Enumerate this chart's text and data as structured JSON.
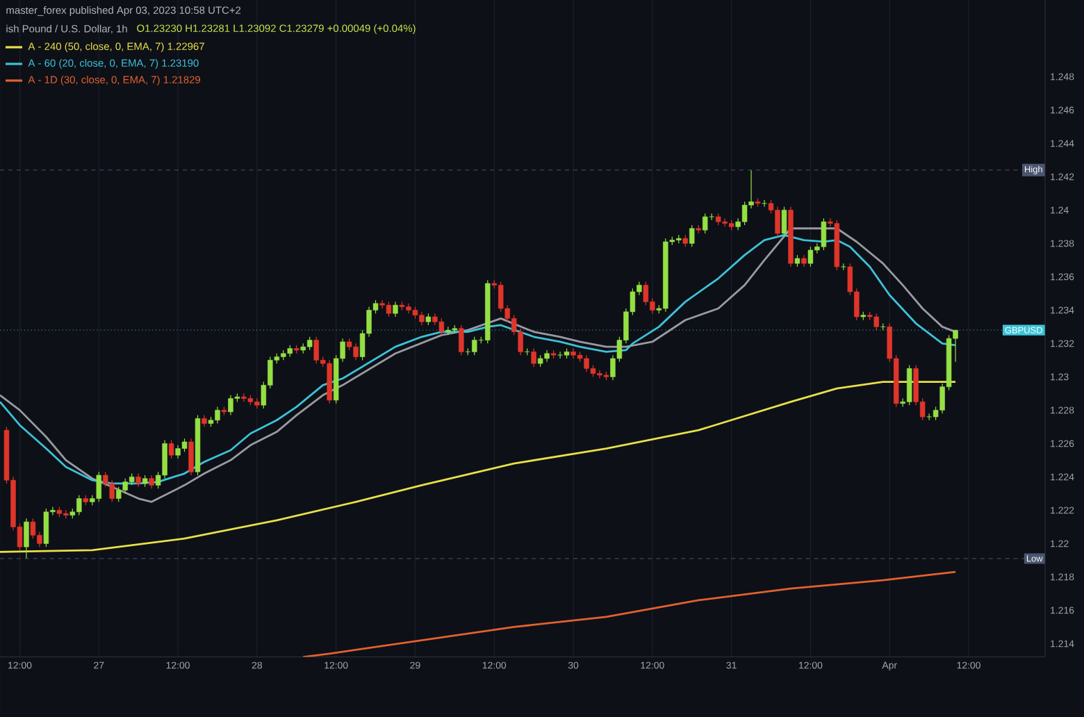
{
  "chart_data": {
    "type": "candlestick",
    "title": "ish Pound / U.S. Dollar, 1h",
    "subtitle": "O1.23230 H1.23281 L1.23092 C1.23279 +0.00049 (+0.04%)",
    "annotations": [
      "master_forex published Apr 03, 2023 10:58 UTC+2"
    ],
    "x": [
      "2023-03-26T10:00",
      "2023-03-26T11:00",
      "2023-03-26T12:00",
      "2023-03-26T13:00",
      "2023-03-26T14:00",
      "2023-03-26T15:00",
      "2023-03-26T16:00",
      "2023-03-26T17:00",
      "2023-03-26T18:00",
      "2023-03-26T19:00",
      "2023-03-26T20:00",
      "2023-03-26T21:00",
      "2023-03-26T22:00",
      "2023-03-26T23:00",
      "2023-03-27T00:00",
      "2023-03-27T01:00",
      "2023-03-27T02:00",
      "2023-03-27T03:00",
      "2023-03-27T04:00",
      "2023-03-27T05:00",
      "2023-03-27T06:00",
      "2023-03-27T07:00",
      "2023-03-27T08:00",
      "2023-03-27T09:00",
      "2023-03-27T10:00",
      "2023-03-27T11:00",
      "2023-03-27T12:00",
      "2023-03-27T13:00",
      "2023-03-27T14:00",
      "2023-03-27T15:00",
      "2023-03-27T16:00",
      "2023-03-27T17:00",
      "2023-03-27T18:00",
      "2023-03-27T19:00",
      "2023-03-27T20:00",
      "2023-03-27T21:00",
      "2023-03-27T22:00",
      "2023-03-27T23:00",
      "2023-03-28T00:00",
      "2023-03-28T01:00",
      "2023-03-28T02:00",
      "2023-03-28T03:00",
      "2023-03-28T04:00",
      "2023-03-28T05:00",
      "2023-03-28T06:00",
      "2023-03-28T07:00",
      "2023-03-28T08:00",
      "2023-03-28T09:00",
      "2023-03-28T10:00",
      "2023-03-28T11:00",
      "2023-03-28T12:00",
      "2023-03-28T13:00",
      "2023-03-28T14:00",
      "2023-03-28T15:00",
      "2023-03-28T16:00",
      "2023-03-28T17:00",
      "2023-03-28T18:00",
      "2023-03-28T19:00",
      "2023-03-28T20:00",
      "2023-03-28T21:00",
      "2023-03-28T22:00",
      "2023-03-28T23:00",
      "2023-03-29T00:00",
      "2023-03-29T01:00",
      "2023-03-29T02:00",
      "2023-03-29T03:00",
      "2023-03-29T04:00",
      "2023-03-29T05:00",
      "2023-03-29T06:00",
      "2023-03-29T07:00",
      "2023-03-29T08:00",
      "2023-03-29T09:00",
      "2023-03-29T10:00",
      "2023-03-29T11:00",
      "2023-03-29T12:00",
      "2023-03-29T13:00",
      "2023-03-29T14:00",
      "2023-03-29T15:00",
      "2023-03-29T16:00",
      "2023-03-29T17:00",
      "2023-03-29T18:00",
      "2023-03-29T19:00",
      "2023-03-29T20:00",
      "2023-03-29T21:00",
      "2023-03-29T22:00",
      "2023-03-29T23:00",
      "2023-03-30T00:00",
      "2023-03-30T01:00",
      "2023-03-30T02:00",
      "2023-03-30T03:00",
      "2023-03-30T04:00",
      "2023-03-30T05:00",
      "2023-03-30T06:00",
      "2023-03-30T07:00",
      "2023-03-30T08:00",
      "2023-03-30T09:00",
      "2023-03-30T10:00",
      "2023-03-30T11:00",
      "2023-03-30T12:00",
      "2023-03-30T13:00",
      "2023-03-30T14:00",
      "2023-03-30T15:00",
      "2023-03-30T16:00",
      "2023-03-30T17:00",
      "2023-03-30T18:00",
      "2023-03-30T19:00",
      "2023-03-30T20:00",
      "2023-03-30T21:00",
      "2023-03-30T22:00",
      "2023-03-30T23:00",
      "2023-03-31T00:00",
      "2023-03-31T01:00",
      "2023-03-31T02:00",
      "2023-03-31T03:00",
      "2023-03-31T04:00",
      "2023-03-31T05:00",
      "2023-03-31T06:00",
      "2023-03-31T07:00",
      "2023-03-31T08:00",
      "2023-03-31T09:00",
      "2023-03-31T10:00",
      "2023-03-31T11:00",
      "2023-03-31T12:00",
      "2023-03-31T13:00",
      "2023-03-31T14:00",
      "2023-03-31T15:00",
      "2023-03-31T16:00",
      "2023-03-31T17:00",
      "2023-03-31T18:00",
      "2023-03-31T19:00",
      "2023-03-31T20:00",
      "2023-03-31T21:00",
      "2023-03-31T22:00",
      "2023-03-31T23:00",
      "2023-04-01T00:00",
      "2023-04-01T01:00",
      "2023-04-01T02:00",
      "2023-04-01T03:00",
      "2023-04-01T04:00",
      "2023-04-01T05:00",
      "2023-04-01T06:00",
      "2023-04-01T07:00",
      "2023-04-01T08:00",
      "2023-04-01T09:00",
      "2023-04-01T10:00"
    ],
    "ohlc": [
      [
        1.2268,
        1.227,
        1.2236,
        1.2238
      ],
      [
        1.2238,
        1.224,
        1.2208,
        1.221
      ],
      [
        1.221,
        1.2212,
        1.2196,
        1.2198
      ],
      [
        1.2198,
        1.2215,
        1.2191,
        1.2213
      ],
      [
        1.2213,
        1.2215,
        1.2203,
        1.2205
      ],
      [
        1.2205,
        1.2207,
        1.2198,
        1.22
      ],
      [
        1.22,
        1.2221,
        1.2198,
        1.2219
      ],
      [
        1.2219,
        1.2222,
        1.2217,
        1.222
      ],
      [
        1.222,
        1.2222,
        1.2216,
        1.2218
      ],
      [
        1.2218,
        1.222,
        1.2215,
        1.2217
      ],
      [
        1.2217,
        1.2221,
        1.2215,
        1.2219
      ],
      [
        1.2219,
        1.2229,
        1.2217,
        1.2227
      ],
      [
        1.2227,
        1.2229,
        1.2223,
        1.2225
      ],
      [
        1.2225,
        1.2229,
        1.2223,
        1.2227
      ],
      [
        1.2227,
        1.2243,
        1.2225,
        1.2241
      ],
      [
        1.2241,
        1.2243,
        1.2234,
        1.2236
      ],
      [
        1.2236,
        1.2238,
        1.2225,
        1.2227
      ],
      [
        1.2227,
        1.2234,
        1.2225,
        1.2232
      ],
      [
        1.2232,
        1.2239,
        1.223,
        1.2237
      ],
      [
        1.2237,
        1.2242,
        1.2235,
        1.224
      ],
      [
        1.224,
        1.2242,
        1.2234,
        1.2236
      ],
      [
        1.2236,
        1.2241,
        1.2234,
        1.2239
      ],
      [
        1.2239,
        1.2241,
        1.2233,
        1.2235
      ],
      [
        1.2235,
        1.2243,
        1.2233,
        1.2241
      ],
      [
        1.2241,
        1.2262,
        1.2239,
        1.226
      ],
      [
        1.226,
        1.2262,
        1.2251,
        1.2253
      ],
      [
        1.2253,
        1.2259,
        1.2251,
        1.2257
      ],
      [
        1.2257,
        1.2263,
        1.2255,
        1.2261
      ],
      [
        1.2261,
        1.2263,
        1.2241,
        1.2243
      ],
      [
        1.2243,
        1.2277,
        1.2241,
        1.2275
      ],
      [
        1.2275,
        1.2277,
        1.227,
        1.2272
      ],
      [
        1.2272,
        1.2276,
        1.227,
        1.2274
      ],
      [
        1.2274,
        1.2282,
        1.2272,
        1.228
      ],
      [
        1.228,
        1.2282,
        1.2277,
        1.2279
      ],
      [
        1.2279,
        1.2289,
        1.2277,
        1.2287
      ],
      [
        1.2287,
        1.229,
        1.2285,
        1.2288
      ],
      [
        1.2288,
        1.229,
        1.2285,
        1.2287
      ],
      [
        1.2287,
        1.2289,
        1.2283,
        1.2285
      ],
      [
        1.2285,
        1.2287,
        1.2281,
        1.2283
      ],
      [
        1.2283,
        1.2297,
        1.2281,
        1.2295
      ],
      [
        1.2295,
        1.2312,
        1.2293,
        1.231
      ],
      [
        1.231,
        1.2314,
        1.2308,
        1.2312
      ],
      [
        1.2312,
        1.2316,
        1.231,
        1.2314
      ],
      [
        1.2314,
        1.2319,
        1.2312,
        1.2317
      ],
      [
        1.2317,
        1.2319,
        1.2314,
        1.2316
      ],
      [
        1.2316,
        1.232,
        1.2314,
        1.2318
      ],
      [
        1.2318,
        1.2324,
        1.2316,
        1.2322
      ],
      [
        1.2322,
        1.2324,
        1.2308,
        1.231
      ],
      [
        1.231,
        1.2312,
        1.2306,
        1.2308
      ],
      [
        1.2308,
        1.231,
        1.2284,
        1.2286
      ],
      [
        1.2286,
        1.2313,
        1.2284,
        1.2311
      ],
      [
        1.2311,
        1.2323,
        1.2309,
        1.2321
      ],
      [
        1.2321,
        1.2323,
        1.2316,
        1.2318
      ],
      [
        1.2318,
        1.232,
        1.231,
        1.2312
      ],
      [
        1.2312,
        1.2328,
        1.231,
        1.2326
      ],
      [
        1.2326,
        1.2342,
        1.2324,
        1.234
      ],
      [
        1.234,
        1.2346,
        1.2338,
        1.2344
      ],
      [
        1.2344,
        1.2346,
        1.2341,
        1.2343
      ],
      [
        1.2343,
        1.2345,
        1.2336,
        1.2338
      ],
      [
        1.2338,
        1.2345,
        1.2336,
        1.2343
      ],
      [
        1.2343,
        1.2345,
        1.234,
        1.2342
      ],
      [
        1.2342,
        1.2344,
        1.2338,
        1.234
      ],
      [
        1.234,
        1.2342,
        1.2335,
        1.2337
      ],
      [
        1.2337,
        1.2339,
        1.2331,
        1.2333
      ],
      [
        1.2333,
        1.2338,
        1.2331,
        1.2336
      ],
      [
        1.2336,
        1.2338,
        1.2331,
        1.2333
      ],
      [
        1.2333,
        1.2335,
        1.2325,
        1.2327
      ],
      [
        1.2327,
        1.233,
        1.2325,
        1.2328
      ],
      [
        1.2328,
        1.2331,
        1.2326,
        1.2329
      ],
      [
        1.2329,
        1.2331,
        1.2313,
        1.2315
      ],
      [
        1.2315,
        1.2317,
        1.2313,
        1.2315
      ],
      [
        1.2315,
        1.2324,
        1.2313,
        1.2322
      ],
      [
        1.2322,
        1.2324,
        1.232,
        1.2322
      ],
      [
        1.2322,
        1.2358,
        1.232,
        1.2356
      ],
      [
        1.2356,
        1.2358,
        1.2353,
        1.2355
      ],
      [
        1.2355,
        1.2357,
        1.2339,
        1.2341
      ],
      [
        1.2341,
        1.2343,
        1.2333,
        1.2335
      ],
      [
        1.2335,
        1.2337,
        1.2325,
        1.2327
      ],
      [
        1.2327,
        1.2329,
        1.2313,
        1.2315
      ],
      [
        1.2315,
        1.2317,
        1.2313,
        1.2315
      ],
      [
        1.2315,
        1.2317,
        1.2306,
        1.2308
      ],
      [
        1.2308,
        1.2313,
        1.2306,
        1.2311
      ],
      [
        1.2311,
        1.2316,
        1.2309,
        1.2314
      ],
      [
        1.2314,
        1.2316,
        1.2311,
        1.2313
      ],
      [
        1.2313,
        1.2315,
        1.2311,
        1.2313
      ],
      [
        1.2313,
        1.2317,
        1.2311,
        1.2315
      ],
      [
        1.2315,
        1.2317,
        1.2311,
        1.2313
      ],
      [
        1.2313,
        1.2315,
        1.2309,
        1.2311
      ],
      [
        1.2311,
        1.2313,
        1.2303,
        1.2305
      ],
      [
        1.2305,
        1.2307,
        1.23,
        1.2302
      ],
      [
        1.2302,
        1.2304,
        1.2299,
        1.2301
      ],
      [
        1.2301,
        1.2303,
        1.2298,
        1.23
      ],
      [
        1.23,
        1.2313,
        1.2298,
        1.2311
      ],
      [
        1.2311,
        1.2324,
        1.2309,
        1.2322
      ],
      [
        1.2322,
        1.2341,
        1.232,
        1.2339
      ],
      [
        1.2339,
        1.2353,
        1.2337,
        1.2351
      ],
      [
        1.2351,
        1.2357,
        1.2349,
        1.2355
      ],
      [
        1.2355,
        1.2357,
        1.2343,
        1.2345
      ],
      [
        1.2345,
        1.2347,
        1.2338,
        1.234
      ],
      [
        1.234,
        1.2343,
        1.2338,
        1.2341
      ],
      [
        1.2341,
        1.2383,
        1.2339,
        1.2381
      ],
      [
        1.2381,
        1.2384,
        1.2379,
        1.2382
      ],
      [
        1.2382,
        1.2385,
        1.238,
        1.2383
      ],
      [
        1.2383,
        1.2385,
        1.2378,
        1.238
      ],
      [
        1.238,
        1.2391,
        1.2378,
        1.2389
      ],
      [
        1.2389,
        1.2391,
        1.2386,
        1.2388
      ],
      [
        1.2388,
        1.2398,
        1.2386,
        1.2396
      ],
      [
        1.2396,
        1.2398,
        1.2394,
        1.2396
      ],
      [
        1.2396,
        1.2398,
        1.2391,
        1.2393
      ],
      [
        1.2393,
        1.2395,
        1.239,
        1.2392
      ],
      [
        1.2392,
        1.2394,
        1.2388,
        1.239
      ],
      [
        1.239,
        1.2395,
        1.2388,
        1.2393
      ],
      [
        1.2393,
        1.2405,
        1.2391,
        1.2403
      ],
      [
        1.2403,
        1.2424,
        1.2401,
        1.2405
      ],
      [
        1.2405,
        1.2407,
        1.2402,
        1.2404
      ],
      [
        1.2404,
        1.2406,
        1.2402,
        1.2404
      ],
      [
        1.2404,
        1.2406,
        1.2398,
        1.24
      ],
      [
        1.24,
        1.2402,
        1.2384,
        1.2386
      ],
      [
        1.2386,
        1.2402,
        1.2384,
        1.24
      ],
      [
        1.24,
        1.2402,
        1.2366,
        1.2368
      ],
      [
        1.2368,
        1.2373,
        1.2366,
        1.2371
      ],
      [
        1.2371,
        1.2373,
        1.2366,
        1.2368
      ],
      [
        1.2368,
        1.2378,
        1.2366,
        1.2376
      ],
      [
        1.2376,
        1.238,
        1.2374,
        1.2378
      ],
      [
        1.2378,
        1.2395,
        1.2376,
        1.2393
      ],
      [
        1.2393,
        1.2395,
        1.239,
        1.2392
      ],
      [
        1.2392,
        1.2394,
        1.2364,
        1.2366
      ],
      [
        1.2366,
        1.2368,
        1.2364,
        1.2366
      ],
      [
        1.2366,
        1.2368,
        1.2349,
        1.2351
      ],
      [
        1.2351,
        1.2353,
        1.2334,
        1.2336
      ],
      [
        1.2336,
        1.2339,
        1.2334,
        1.2337
      ],
      [
        1.2337,
        1.2339,
        1.2334,
        1.2336
      ],
      [
        1.2336,
        1.2338,
        1.2328,
        1.233
      ],
      [
        1.233,
        1.2332,
        1.2328,
        1.233
      ],
      [
        1.233,
        1.2332,
        1.2309,
        1.2311
      ],
      [
        1.2311,
        1.2313,
        1.2282,
        1.2284
      ],
      [
        1.2284,
        1.2287,
        1.2282,
        1.2285
      ],
      [
        1.2285,
        1.2307,
        1.2283,
        1.2305
      ],
      [
        1.2305,
        1.2307,
        1.2283,
        1.2285
      ],
      [
        1.2285,
        1.2287,
        1.2274,
        1.2276
      ],
      [
        1.2276,
        1.2278,
        1.2274,
        1.2276
      ],
      [
        1.2276,
        1.2282,
        1.2274,
        1.228
      ],
      [
        1.228,
        1.2296,
        1.2278,
        1.2294
      ],
      [
        1.2294,
        1.2325,
        1.2292,
        1.2323
      ],
      [
        1.2323,
        1.2328,
        1.2309,
        1.2328
      ]
    ],
    "colors": [
      "#e0352b",
      "#e0352b",
      "#e0352b",
      "#94e044",
      "#e0352b",
      "#e0352b",
      "#94e044",
      "#94e044",
      "#e0352b",
      "#e0352b",
      "#94e044",
      "#94e044",
      "#e0352b",
      "#94e044",
      "#94e044",
      "#e0352b",
      "#e0352b",
      "#94e044",
      "#94e044",
      "#94e044",
      "#e0352b",
      "#94e044",
      "#e0352b",
      "#94e044",
      "#94e044",
      "#e0352b",
      "#94e044",
      "#94e044",
      "#e0352b",
      "#94e044",
      "#e0352b",
      "#94e044",
      "#94e044",
      "#e0352b",
      "#94e044",
      "#94e044",
      "#e0352b",
      "#e0352b",
      "#e0352b",
      "#94e044",
      "#94e044",
      "#94e044",
      "#94e044",
      "#94e044",
      "#e0352b",
      "#94e044",
      "#94e044",
      "#e0352b",
      "#e0352b",
      "#e0352b",
      "#94e044",
      "#94e044",
      "#e0352b",
      "#e0352b",
      "#94e044",
      "#94e044",
      "#94e044",
      "#e0352b",
      "#e0352b",
      "#94e044",
      "#e0352b",
      "#e0352b",
      "#e0352b",
      "#e0352b",
      "#94e044",
      "#e0352b",
      "#e0352b",
      "#94e044",
      "#94e044",
      "#e0352b",
      "#94e044",
      "#94e044",
      "#94e044",
      "#94e044",
      "#e0352b",
      "#e0352b",
      "#e0352b",
      "#e0352b",
      "#e0352b",
      "#94e044",
      "#e0352b",
      "#94e044",
      "#94e044",
      "#e0352b",
      "#94e044",
      "#94e044",
      "#e0352b",
      "#e0352b",
      "#e0352b",
      "#e0352b",
      "#e0352b",
      "#e0352b",
      "#94e044",
      "#94e044",
      "#94e044",
      "#94e044",
      "#94e044",
      "#e0352b",
      "#e0352b",
      "#94e044",
      "#94e044",
      "#94e044",
      "#94e044",
      "#e0352b",
      "#94e044",
      "#e0352b",
      "#94e044",
      "#94e044",
      "#e0352b",
      "#e0352b",
      "#e0352b",
      "#94e044",
      "#94e044",
      "#94e044",
      "#e0352b",
      "#94e044",
      "#e0352b",
      "#e0352b",
      "#94e044",
      "#e0352b",
      "#94e044",
      "#e0352b",
      "#94e044",
      "#94e044",
      "#94e044",
      "#e0352b",
      "#e0352b",
      "#94e044",
      "#e0352b",
      "#e0352b",
      "#94e044",
      "#e0352b",
      "#e0352b",
      "#94e044",
      "#e0352b",
      "#e0352b",
      "#94e044",
      "#94e044",
      "#e0352b",
      "#e0352b",
      "#94e044",
      "#94e044",
      "#94e044",
      "#94e044",
      "#94e044"
    ],
    "series": [
      {
        "type": "line",
        "name": "A - 240 (50, close, 0, EMA, 7)  1.22967",
        "color": "#e8e04a",
        "x": [
          "2023-03-26T09:00",
          "2023-03-26T23:00",
          "2023-03-27T13:00",
          "2023-03-28T03:00",
          "2023-03-28T15:00",
          "2023-03-29T01:00",
          "2023-03-29T15:00",
          "2023-03-30T05:00",
          "2023-03-30T19:00",
          "2023-03-31T09:00",
          "2023-03-31T16:00",
          "2023-03-31T23:00",
          "2023-04-01T10:00"
        ],
        "values": [
          1.2195,
          1.2196,
          1.2203,
          1.2214,
          1.2225,
          1.2235,
          1.2248,
          1.2257,
          1.2268,
          1.2285,
          1.2293,
          1.2297,
          1.2297
        ]
      },
      {
        "type": "line",
        "color": "#9a9aa2",
        "x": [
          "2023-03-26T09:00",
          "2023-03-26T12:00",
          "2023-03-26T16:00",
          "2023-03-26T19:00",
          "2023-03-26T23:00",
          "2023-03-27T02:00",
          "2023-03-27T06:00",
          "2023-03-27T08:00",
          "2023-03-27T13:00",
          "2023-03-27T16:00",
          "2023-03-27T20:00",
          "2023-03-27T23:00",
          "2023-03-28T03:00",
          "2023-03-28T06:00",
          "2023-03-28T10:00",
          "2023-03-28T13:00",
          "2023-03-28T21:00",
          "2023-03-29T04:00",
          "2023-03-29T08:00",
          "2023-03-29T13:00",
          "2023-03-29T18:00",
          "2023-03-29T22:00",
          "2023-03-30T01:00",
          "2023-03-30T05:00",
          "2023-03-30T08:00",
          "2023-03-30T12:00",
          "2023-03-30T17:00",
          "2023-03-30T22:00",
          "2023-03-31T02:00",
          "2023-03-31T05:00",
          "2023-03-31T09:00",
          "2023-03-31T12:00",
          "2023-03-31T16:00",
          "2023-03-31T19:00",
          "2023-03-31T23:00",
          "2023-04-01T02:00",
          "2023-04-01T05:00",
          "2023-04-01T08:00",
          "2023-04-01T10:00"
        ],
        "values": [
          1.2289,
          1.228,
          1.2264,
          1.225,
          1.2239,
          1.2234,
          1.2227,
          1.2225,
          1.2235,
          1.2242,
          1.225,
          1.2259,
          1.2267,
          1.2277,
          1.2289,
          1.2295,
          1.2314,
          1.2325,
          1.2328,
          1.2335,
          1.2327,
          1.2324,
          1.2321,
          1.2318,
          1.2318,
          1.2321,
          1.2334,
          1.2341,
          1.2355,
          1.237,
          1.2389,
          1.2389,
          1.2389,
          1.2381,
          1.2368,
          1.2355,
          1.2341,
          1.233,
          1.2327
        ]
      },
      {
        "type": "line",
        "name": "A - 60 (20, close, 0, EMA, 7)  1.23190",
        "color": "#3cc3d8",
        "x": [
          "2023-03-26T09:00",
          "2023-03-26T12:00",
          "2023-03-26T16:00",
          "2023-03-26T19:00",
          "2023-03-26T23:00",
          "2023-03-27T02:00",
          "2023-03-27T06:00",
          "2023-03-27T09:00",
          "2023-03-27T13:00",
          "2023-03-27T16:00",
          "2023-03-27T20:00",
          "2023-03-27T23:00",
          "2023-03-28T03:00",
          "2023-03-28T06:00",
          "2023-03-28T10:00",
          "2023-03-28T13:00",
          "2023-03-28T21:00",
          "2023-03-29T01:00",
          "2023-03-29T04:00",
          "2023-03-29T08:00",
          "2023-03-29T11:00",
          "2023-03-29T13:00",
          "2023-03-29T18:00",
          "2023-03-29T22:00",
          "2023-03-30T01:00",
          "2023-03-30T05:00",
          "2023-03-30T08:00",
          "2023-03-30T09:00",
          "2023-03-30T13:00",
          "2023-03-30T17:00",
          "2023-03-30T22:00",
          "2023-03-31T02:00",
          "2023-03-31T05:00",
          "2023-03-31T08:00",
          "2023-03-31T11:00",
          "2023-03-31T14:00",
          "2023-03-31T16:00",
          "2023-03-31T18:00",
          "2023-03-31T21:00",
          "2023-04-01T00:00",
          "2023-04-01T04:00",
          "2023-04-01T08:00",
          "2023-04-01T10:00"
        ],
        "values": [
          1.2285,
          1.2271,
          1.2257,
          1.2246,
          1.2238,
          1.2236,
          1.2236,
          1.2237,
          1.2242,
          1.2249,
          1.2256,
          1.2266,
          1.2274,
          1.2282,
          1.2295,
          1.2299,
          1.2318,
          1.2324,
          1.2327,
          1.2327,
          1.233,
          1.2331,
          1.2324,
          1.2321,
          1.2318,
          1.2315,
          1.2316,
          1.232,
          1.233,
          1.2345,
          1.2359,
          1.2373,
          1.2382,
          1.2385,
          1.2382,
          1.2381,
          1.2382,
          1.2378,
          1.2366,
          1.2349,
          1.2332,
          1.232,
          1.2319
        ]
      },
      {
        "type": "line",
        "name": "A - 1D (30, close, 0, EMA, 7)  1.21829",
        "color": "#e2622f",
        "x": [
          "2023-03-28T07:00",
          "2023-03-28T11:00",
          "2023-03-29T15:00",
          "2023-03-30T05:00",
          "2023-03-30T19:00",
          "2023-03-31T09:00",
          "2023-03-31T23:00",
          "2023-04-01T10:00"
        ],
        "values": [
          1.2132,
          1.2134,
          1.215,
          1.2156,
          1.2166,
          1.2173,
          1.2178,
          1.2183
        ]
      }
    ],
    "xlim": [
      "2023-03-26T09:00",
      "2023-04-01T23:36"
    ],
    "ylim": [
      1.2132,
      1.2532
    ],
    "xticks": [
      {
        "value": "2023-03-26T12:00",
        "label": "12:00"
      },
      {
        "value": "2023-03-27",
        "label": "27"
      },
      {
        "value": "2023-03-27T12:00",
        "label": "12:00"
      },
      {
        "value": "2023-03-28",
        "label": "28"
      },
      {
        "value": "2023-03-28T12:00",
        "label": "12:00"
      },
      {
        "value": "2023-03-29",
        "label": "29"
      },
      {
        "value": "2023-03-29T12:00",
        "label": "12:00"
      },
      {
        "value": "2023-03-30",
        "label": "30"
      },
      {
        "value": "2023-03-30T12:00",
        "label": "12:00"
      },
      {
        "value": "2023-03-31",
        "label": "31"
      },
      {
        "value": "2023-03-31T12:00",
        "label": "12:00"
      },
      {
        "value": "2023-04-01",
        "label": "Apr"
      },
      {
        "value": "2023-04-01T12:00",
        "label": "12:00"
      }
    ],
    "yticks": [
      1.214,
      1.216,
      1.218,
      1.22,
      1.222,
      1.224,
      1.226,
      1.228,
      1.23,
      1.232,
      1.234,
      1.236,
      1.238,
      1.24,
      1.242,
      1.244,
      1.246,
      1.248
    ],
    "ref_lines": [
      {
        "axis": "y",
        "value": 1.2424,
        "label": "High",
        "color": "#4a5570",
        "line_style": "dashed"
      },
      {
        "axis": "y",
        "value": 1.2328,
        "label": "GBPUSD",
        "color": "#3cc3d8",
        "line_style": "dotted"
      },
      {
        "axis": "y",
        "value": 1.2191,
        "label": "Low",
        "color": "#4a5570",
        "line_style": "dashed"
      }
    ],
    "grid": "x",
    "legend": "top left"
  }
}
